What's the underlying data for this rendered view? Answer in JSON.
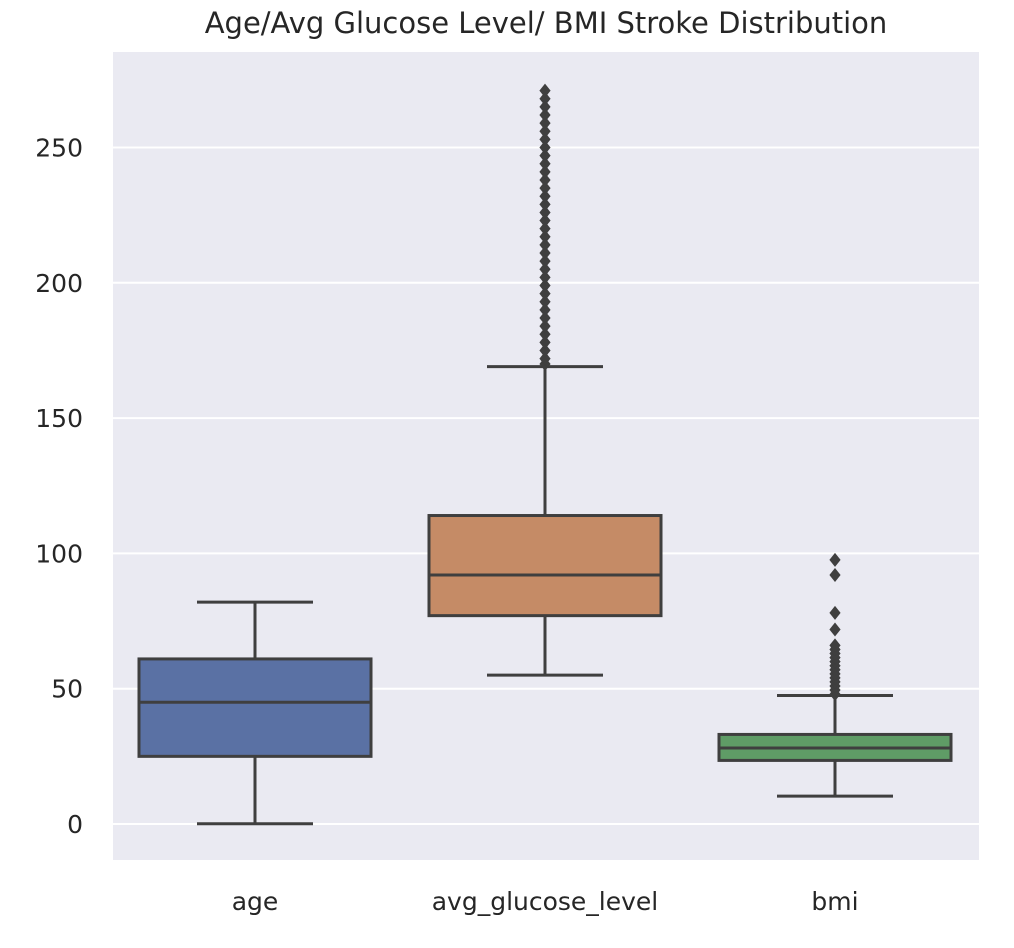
{
  "chart_data": {
    "type": "box",
    "title": "Age/Avg Glucose Level/ BMI Stroke Distribution",
    "xlabel": "",
    "ylabel": "",
    "ylim": [
      -13,
      285
    ],
    "yticks": [
      0,
      50,
      100,
      150,
      200,
      250
    ],
    "grid": true,
    "legend": "none",
    "categories": [
      "age",
      "avg_glucose_level",
      "bmi"
    ],
    "boxes": [
      {
        "category": "age",
        "whisker_low": 0.08,
        "q1": 25,
        "median": 45,
        "q3": 61,
        "whisker_high": 82,
        "outliers": [],
        "color": "#5a71a4"
      },
      {
        "category": "avg_glucose_level",
        "whisker_low": 55,
        "q1": 77,
        "median": 92,
        "q3": 114,
        "whisker_high": 169,
        "outliers": [
          170,
          172,
          175,
          178,
          181,
          184,
          187,
          190,
          193,
          196,
          199,
          202,
          205,
          208,
          211,
          214,
          217,
          220,
          223,
          226,
          229,
          232,
          235,
          238,
          241,
          244,
          247,
          250,
          253,
          256,
          259,
          262,
          265,
          268,
          271
        ],
        "color": "#c58b66"
      },
      {
        "category": "bmi",
        "whisker_low": 10.3,
        "q1": 23.5,
        "median": 28.1,
        "q3": 33.1,
        "whisker_high": 47.5,
        "outliers": [
          48,
          49.5,
          51,
          52.5,
          54,
          55.5,
          57,
          58.5,
          60,
          61.5,
          63,
          64.5,
          66,
          71.9,
          78,
          92,
          97.6
        ],
        "color": "#5f9c66"
      }
    ]
  }
}
